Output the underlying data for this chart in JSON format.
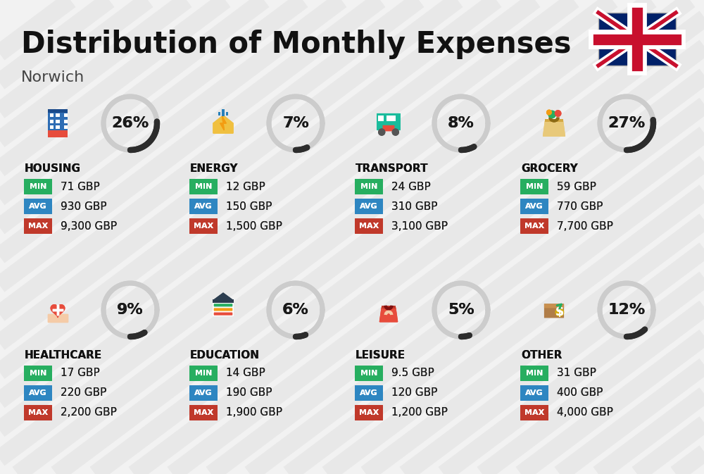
{
  "title": "Distribution of Monthly Expenses",
  "subtitle": "Norwich",
  "background_color": "#f2f2f2",
  "stripe_color": "#e0e0e0",
  "categories": [
    {
      "name": "HOUSING",
      "pct": 26,
      "min_val": "71 GBP",
      "avg_val": "930 GBP",
      "max_val": "9,300 GBP",
      "row": 0,
      "col": 0
    },
    {
      "name": "ENERGY",
      "pct": 7,
      "min_val": "12 GBP",
      "avg_val": "150 GBP",
      "max_val": "1,500 GBP",
      "row": 0,
      "col": 1
    },
    {
      "name": "TRANSPORT",
      "pct": 8,
      "min_val": "24 GBP",
      "avg_val": "310 GBP",
      "max_val": "3,100 GBP",
      "row": 0,
      "col": 2
    },
    {
      "name": "GROCERY",
      "pct": 27,
      "min_val": "59 GBP",
      "avg_val": "770 GBP",
      "max_val": "7,700 GBP",
      "row": 0,
      "col": 3
    },
    {
      "name": "HEALTHCARE",
      "pct": 9,
      "min_val": "17 GBP",
      "avg_val": "220 GBP",
      "max_val": "2,200 GBP",
      "row": 1,
      "col": 0
    },
    {
      "name": "EDUCATION",
      "pct": 6,
      "min_val": "14 GBP",
      "avg_val": "190 GBP",
      "max_val": "1,900 GBP",
      "row": 1,
      "col": 1
    },
    {
      "name": "LEISURE",
      "pct": 5,
      "min_val": "9.5 GBP",
      "avg_val": "120 GBP",
      "max_val": "1,200 GBP",
      "row": 1,
      "col": 2
    },
    {
      "name": "OTHER",
      "pct": 12,
      "min_val": "31 GBP",
      "avg_val": "400 GBP",
      "max_val": "4,000 GBP",
      "row": 1,
      "col": 3
    }
  ],
  "min_color": "#27ae60",
  "avg_color": "#2e86c1",
  "max_color": "#c0392b",
  "label_color": "#ffffff",
  "arc_dark": "#2c2c2c",
  "arc_light": "#cccccc",
  "title_fontsize": 30,
  "subtitle_fontsize": 16,
  "cat_fontsize": 11,
  "val_fontsize": 11,
  "pct_fontsize": 16,
  "badge_label_fontsize": 8
}
